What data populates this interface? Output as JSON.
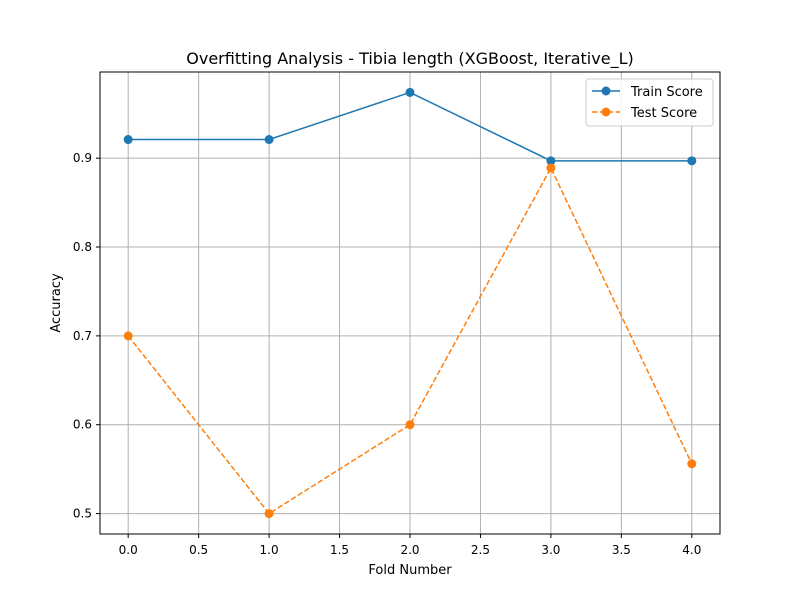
{
  "chart_data": {
    "type": "line",
    "title": "Overfitting Analysis - Tibia length (XGBoost, Iterative_L)",
    "xlabel": "Fold Number",
    "ylabel": "Accuracy",
    "x": [
      0,
      1,
      2,
      3,
      4
    ],
    "xlim": [
      -0.2,
      4.2
    ],
    "ylim": [
      0.477,
      0.997
    ],
    "xticks": [
      0.0,
      0.5,
      1.0,
      1.5,
      2.0,
      2.5,
      3.0,
      3.5,
      4.0
    ],
    "xtick_labels": [
      "0.0",
      "0.5",
      "1.0",
      "1.5",
      "2.0",
      "2.5",
      "3.0",
      "3.5",
      "4.0"
    ],
    "yticks": [
      0.5,
      0.6,
      0.7,
      0.8,
      0.9
    ],
    "ytick_labels": [
      "0.5",
      "0.6",
      "0.7",
      "0.8",
      "0.9"
    ],
    "grid": true,
    "legend_position": "top-right",
    "series": [
      {
        "name": "Train Score",
        "values": [
          0.921,
          0.921,
          0.974,
          0.897,
          0.897
        ],
        "color": "#1f77b4",
        "line_style": "solid",
        "marker": "circle"
      },
      {
        "name": "Test Score",
        "values": [
          0.7,
          0.5,
          0.6,
          0.889,
          0.556
        ],
        "color": "#ff7f0e",
        "line_style": "dashed",
        "marker": "circle"
      }
    ]
  }
}
